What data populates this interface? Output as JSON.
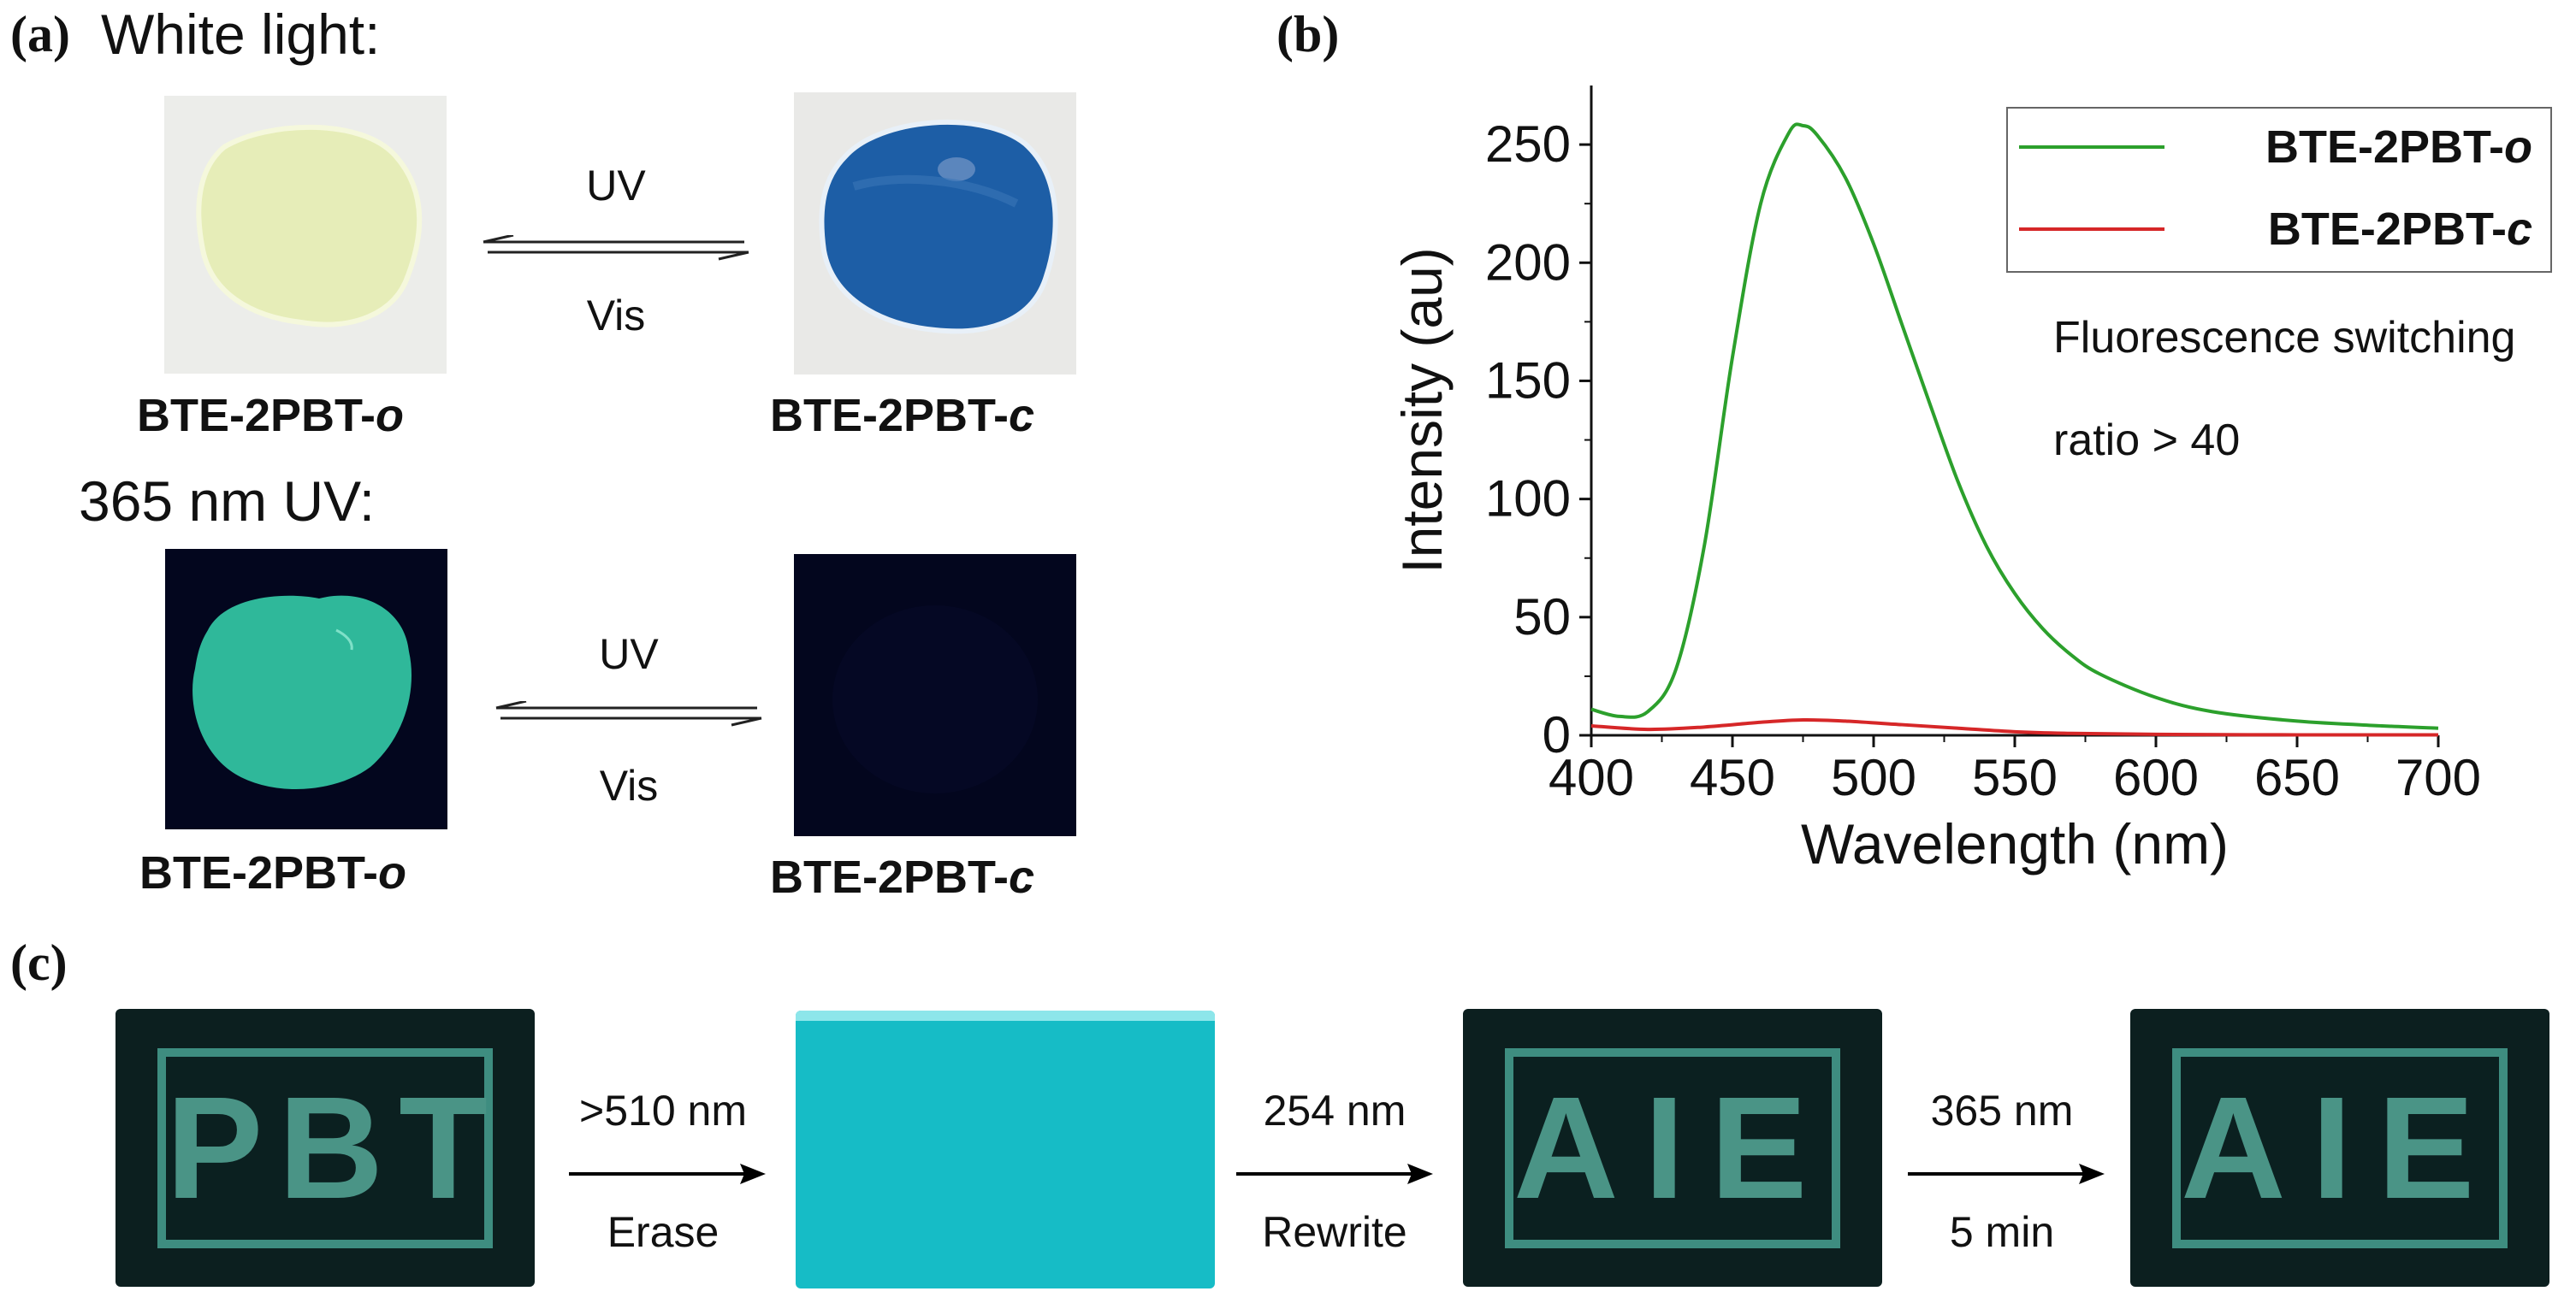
{
  "panel_a": {
    "label": "(a)",
    "white_light_heading": "White light:",
    "uv365_heading": "365 nm UV:",
    "arrow_top_label": "UV",
    "arrow_bottom_label": "Vis",
    "open_label_prefix": "BTE-2PBT-",
    "open_label_suffix": "o",
    "closed_label_prefix": "BTE-2PBT-",
    "closed_label_suffix": "c",
    "colors": {
      "open_white": "#e6edb8",
      "closed_white": "#1d5ea6",
      "open_uv": "#2fb89a",
      "uv_background": "#03061e"
    }
  },
  "panel_b": {
    "label": "(b)",
    "annotation_line1": "Fluorescence switching",
    "annotation_line2": "ratio > 40"
  },
  "chart_data": {
    "type": "line",
    "xlabel": "Wavelength (nm)",
    "ylabel": "Intensity (au)",
    "xlim": [
      400,
      700
    ],
    "ylim": [
      0,
      275
    ],
    "xticks": [
      400,
      450,
      500,
      550,
      600,
      650,
      700
    ],
    "yticks": [
      0,
      50,
      100,
      150,
      200,
      250
    ],
    "legend_position": "top-right",
    "series": [
      {
        "name": "BTE-2PBT-o",
        "name_prefix": "BTE-2PBT-",
        "name_suffix": "o",
        "color": "#2ca02c",
        "x": [
          400,
          410,
          420,
          430,
          440,
          450,
          460,
          470,
          475,
          480,
          490,
          500,
          510,
          520,
          530,
          540,
          550,
          560,
          570,
          580,
          600,
          620,
          650,
          680,
          700
        ],
        "y": [
          11,
          8,
          10,
          28,
          80,
          160,
          225,
          255,
          258,
          254,
          236,
          208,
          174,
          140,
          107,
          80,
          60,
          45,
          34,
          26,
          16,
          10,
          6,
          4,
          3
        ]
      },
      {
        "name": "BTE-2PBT-c",
        "name_prefix": "BTE-2PBT-",
        "name_suffix": "c",
        "color": "#d62728",
        "x": [
          400,
          420,
          440,
          460,
          475,
          490,
          510,
          530,
          550,
          570,
          600,
          650,
          700
        ],
        "y": [
          4,
          2.5,
          3.5,
          5.5,
          6.5,
          6,
          4.5,
          3,
          1.5,
          0.8,
          0.4,
          0.2,
          0.2
        ]
      }
    ]
  },
  "panel_c": {
    "label": "(c)",
    "steps": [
      {
        "top": ">510 nm",
        "bottom": "Erase"
      },
      {
        "top": "254 nm",
        "bottom": "Rewrite"
      },
      {
        "top": "365 nm",
        "bottom": "5 min"
      }
    ],
    "card1_text": "PBT",
    "card3_text": "AIE",
    "card4_text": "AIE"
  }
}
